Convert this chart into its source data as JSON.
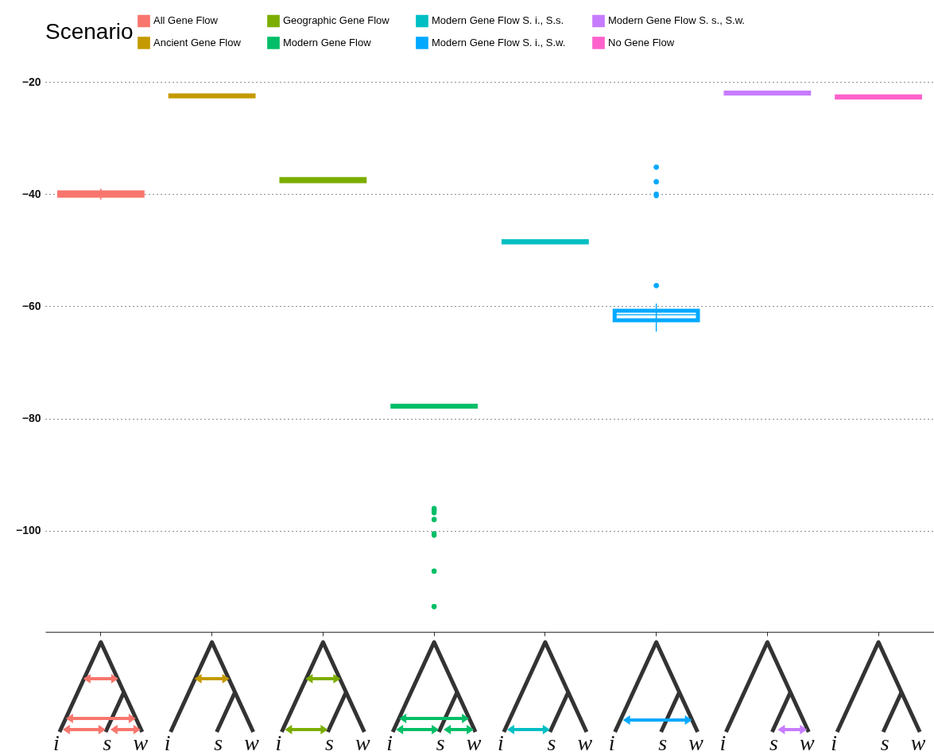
{
  "chart_data": {
    "type": "box",
    "legend_title": "Scenario",
    "legend": "top",
    "categories": [
      null,
      null,
      null,
      null,
      null,
      null,
      null,
      null
    ],
    "ylim": [
      -118,
      -20
    ],
    "yticks": [
      -20,
      -40,
      -60,
      -80,
      -100
    ],
    "grid": "y",
    "annotations": [
      "i",
      "s",
      "w"
    ],
    "series": [
      {
        "name": "All Gene Flow",
        "color": "#f8766d",
        "boxes": [
          {
            "low": -41,
            "q1": -40.3,
            "median": -40,
            "q3": -39.7,
            "high": -39
          },
          null,
          null,
          null,
          null,
          null,
          null,
          null
        ]
      },
      {
        "name": "Ancient Gene Flow",
        "color": "#c49a00",
        "boxes": [
          null,
          {
            "low": -22.8,
            "q1": -22.6,
            "median": -22.5,
            "q3": -22.4,
            "high": -22.2
          },
          null,
          null,
          null,
          null,
          null,
          null
        ]
      },
      {
        "name": "Geographic Gene Flow",
        "color": "#7cae00",
        "boxes": [
          null,
          null,
          {
            "low": -38,
            "q1": -37.7,
            "median": -37.5,
            "q3": -37.3,
            "high": -37
          },
          null,
          null,
          null,
          null,
          null
        ]
      },
      {
        "name": "Modern Gene Flow",
        "color": "#00be67",
        "boxes": [
          null,
          null,
          null,
          {
            "low": -78.1,
            "q1": -77.9,
            "median": -77.8,
            "q3": -77.7,
            "high": -77.5,
            "outliers": [
              -96.3,
              -96.4,
              -96.8,
              -96,
              -96.4,
              -98,
              -98,
              -100.5,
              -100.8,
              -107.2,
              -107.2,
              -113.5,
              -113.5
            ]
          },
          null,
          null,
          null,
          null
        ]
      },
      {
        "name": "Modern Gene Flow S. i., S.s.",
        "color": "#00bfc4",
        "boxes": [
          null,
          null,
          null,
          null,
          {
            "low": -48.8,
            "q1": -48.6,
            "median": -48.5,
            "q3": -48.4,
            "high": -48.2
          },
          null,
          null,
          null
        ]
      },
      {
        "name": "Modern Gene Flow S. i., S.w.",
        "color": "#00a9ff",
        "boxes": [
          null,
          null,
          null,
          null,
          null,
          {
            "low": -64.5,
            "q1": -62.5,
            "median": -61.5,
            "q3": -60.8,
            "high": -59.5,
            "outliers": [
              -35.2,
              -35.2,
              -37.8,
              -37.8,
              -40,
              -40.3,
              -56.3,
              -56.3
            ]
          },
          null,
          null
        ]
      },
      {
        "name": "Modern Gene Flow S. s., S.w.",
        "color": "#c77cff",
        "boxes": [
          null,
          null,
          null,
          null,
          null,
          null,
          {
            "low": -22.3,
            "q1": -22.1,
            "median": -22,
            "q3": -21.9,
            "high": -21.7
          },
          null
        ]
      },
      {
        "name": "No Gene Flow",
        "color": "#ff61cc",
        "boxes": [
          null,
          null,
          null,
          null,
          null,
          null,
          null,
          {
            "low": -23,
            "q1": -22.8,
            "median": -22.7,
            "q3": -22.6,
            "high": -22.4
          }
        ]
      }
    ]
  }
}
